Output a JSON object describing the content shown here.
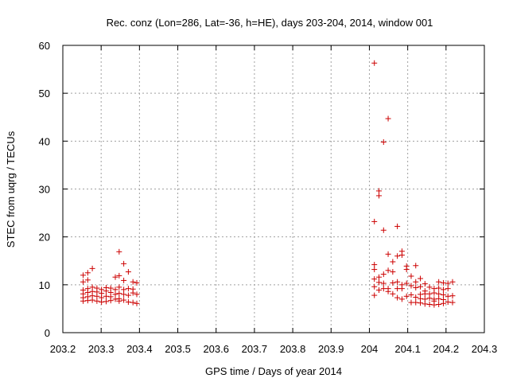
{
  "chart_data": {
    "type": "scatter",
    "title": "Rec. conz (Lon=286, Lat=-36, h=HE), days 203-204, 2014, window 001",
    "xlabel": "GPS time / Days of year 2014",
    "ylabel": "STEC from uqrg / TECUs",
    "xlim": [
      203.2,
      204.3
    ],
    "ylim": [
      0,
      60
    ],
    "xticks": [
      "203.2",
      "203.3",
      "203.4",
      "203.5",
      "203.6",
      "203.7",
      "203.8",
      "203.9",
      "204",
      "204.1",
      "204.2",
      "204.3"
    ],
    "yticks": [
      "0",
      "10",
      "20",
      "30",
      "40",
      "50",
      "60"
    ],
    "grid": true,
    "marker": "+",
    "color": "#cc0000",
    "series": [
      {
        "points": [
          [
            203.253,
            12.0
          ],
          [
            203.253,
            10.6
          ],
          [
            203.253,
            8.9
          ],
          [
            203.253,
            8.1
          ],
          [
            203.253,
            7.3
          ],
          [
            203.253,
            6.6
          ],
          [
            203.265,
            12.5
          ],
          [
            203.265,
            11.0
          ],
          [
            203.265,
            9.2
          ],
          [
            203.265,
            8.4
          ],
          [
            203.265,
            7.5
          ],
          [
            203.265,
            6.7
          ],
          [
            203.277,
            13.4
          ],
          [
            203.277,
            9.5
          ],
          [
            203.277,
            8.6
          ],
          [
            203.277,
            7.7
          ],
          [
            203.277,
            6.8
          ],
          [
            203.289,
            9.3
          ],
          [
            203.289,
            8.5
          ],
          [
            203.289,
            7.6
          ],
          [
            203.289,
            6.6
          ],
          [
            203.301,
            9.0
          ],
          [
            203.301,
            8.2
          ],
          [
            203.301,
            7.3
          ],
          [
            203.301,
            6.4
          ],
          [
            203.313,
            9.4
          ],
          [
            203.313,
            8.7
          ],
          [
            203.313,
            7.6
          ],
          [
            203.313,
            6.5
          ],
          [
            203.325,
            9.3
          ],
          [
            203.325,
            8.4
          ],
          [
            203.325,
            7.5
          ],
          [
            203.325,
            6.7
          ],
          [
            203.337,
            11.6
          ],
          [
            203.337,
            9.0
          ],
          [
            203.337,
            8.0
          ],
          [
            203.337,
            7.0
          ],
          [
            203.347,
            16.9
          ],
          [
            203.347,
            11.9
          ],
          [
            203.347,
            9.5
          ],
          [
            203.347,
            8.2
          ],
          [
            203.347,
            7.1
          ],
          [
            203.347,
            6.6
          ],
          [
            203.359,
            14.4
          ],
          [
            203.359,
            10.9
          ],
          [
            203.359,
            9.0
          ],
          [
            203.359,
            8.0
          ],
          [
            203.359,
            6.8
          ],
          [
            203.371,
            12.7
          ],
          [
            203.371,
            9.2
          ],
          [
            203.371,
            7.8
          ],
          [
            203.371,
            6.4
          ],
          [
            203.383,
            10.6
          ],
          [
            203.383,
            9.1
          ],
          [
            203.383,
            8.3
          ],
          [
            203.383,
            6.3
          ],
          [
            203.393,
            10.4
          ],
          [
            203.393,
            8.0
          ],
          [
            203.393,
            6.1
          ],
          [
            204.013,
            56.3
          ],
          [
            204.013,
            23.2
          ],
          [
            204.013,
            14.2
          ],
          [
            204.013,
            13.2
          ],
          [
            204.013,
            11.2
          ],
          [
            204.013,
            9.6
          ],
          [
            204.013,
            7.8
          ],
          [
            204.025,
            29.6
          ],
          [
            204.025,
            28.6
          ],
          [
            204.025,
            11.6
          ],
          [
            204.025,
            10.5
          ],
          [
            204.025,
            8.9
          ],
          [
            204.037,
            39.8
          ],
          [
            204.037,
            21.4
          ],
          [
            204.037,
            12.2
          ],
          [
            204.037,
            10.3
          ],
          [
            204.037,
            9.2
          ],
          [
            204.049,
            44.7
          ],
          [
            204.049,
            16.4
          ],
          [
            204.049,
            13.0
          ],
          [
            204.049,
            9.2
          ],
          [
            204.049,
            8.6
          ],
          [
            204.061,
            14.8
          ],
          [
            204.061,
            12.7
          ],
          [
            204.061,
            10.4
          ],
          [
            204.061,
            8.1
          ],
          [
            204.073,
            22.2
          ],
          [
            204.073,
            16.0
          ],
          [
            204.073,
            10.6
          ],
          [
            204.073,
            9.2
          ],
          [
            204.073,
            7.3
          ],
          [
            204.085,
            17.0
          ],
          [
            204.085,
            16.2
          ],
          [
            204.085,
            10.0
          ],
          [
            204.085,
            9.2
          ],
          [
            204.085,
            7.0
          ],
          [
            204.097,
            13.9
          ],
          [
            204.097,
            13.2
          ],
          [
            204.097,
            10.3
          ],
          [
            204.097,
            7.6
          ],
          [
            204.109,
            11.8
          ],
          [
            204.109,
            9.8
          ],
          [
            204.109,
            7.9
          ],
          [
            204.109,
            6.3
          ],
          [
            204.121,
            14.0
          ],
          [
            204.121,
            10.6
          ],
          [
            204.121,
            9.4
          ],
          [
            204.121,
            7.4
          ],
          [
            204.121,
            6.3
          ],
          [
            204.133,
            11.3
          ],
          [
            204.133,
            9.6
          ],
          [
            204.133,
            8.0
          ],
          [
            204.133,
            7.1
          ],
          [
            204.133,
            6.2
          ],
          [
            204.145,
            10.2
          ],
          [
            204.145,
            8.7
          ],
          [
            204.145,
            8.1
          ],
          [
            204.145,
            7.0
          ],
          [
            204.145,
            6.0
          ],
          [
            204.157,
            9.5
          ],
          [
            204.157,
            8.1
          ],
          [
            204.157,
            7.2
          ],
          [
            204.157,
            5.9
          ],
          [
            204.169,
            9.2
          ],
          [
            204.169,
            8.3
          ],
          [
            204.169,
            7.0
          ],
          [
            204.169,
            6.6
          ],
          [
            204.169,
            5.8
          ],
          [
            204.181,
            10.6
          ],
          [
            204.181,
            9.3
          ],
          [
            204.181,
            8.1
          ],
          [
            204.181,
            7.1
          ],
          [
            204.181,
            5.9
          ],
          [
            204.193,
            10.4
          ],
          [
            204.193,
            9.0
          ],
          [
            204.193,
            7.9
          ],
          [
            204.193,
            6.9
          ],
          [
            204.193,
            6.1
          ],
          [
            204.205,
            10.3
          ],
          [
            204.205,
            9.2
          ],
          [
            204.205,
            7.6
          ],
          [
            204.205,
            6.4
          ],
          [
            204.217,
            10.6
          ],
          [
            204.217,
            7.7
          ],
          [
            204.217,
            6.3
          ]
        ]
      }
    ]
  }
}
